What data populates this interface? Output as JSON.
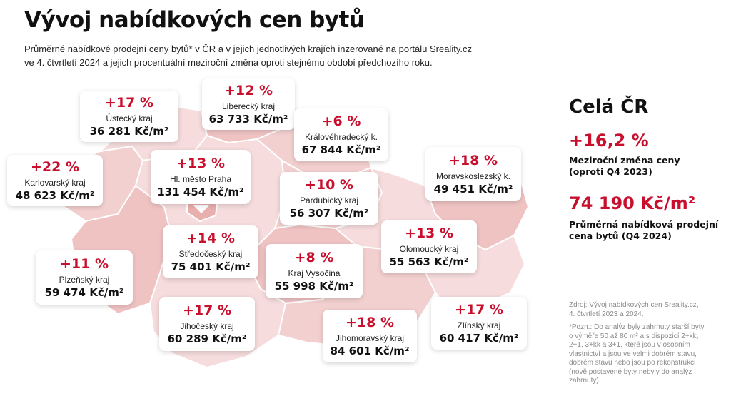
{
  "title": "Vývoj nabídkových cen bytů",
  "subtitle_line1": "Průměrné nabídkové prodejní ceny bytů* v ČR a v jejich jednotlivých krajích inzerované na portálu Sreality.cz",
  "subtitle_line2": "ve 4. čtvrtletí 2024 a jejich procentuální meziroční změna oproti stejnému období předchozího roku.",
  "colors": {
    "accent": "#c8102e",
    "map_light": "#f6dcdc",
    "map_mid": "#f0c3c3",
    "map_dark": "#e9aeae"
  },
  "regions": [
    {
      "id": "ustecky",
      "change": "+17 %",
      "name": "Ústecký kraj",
      "price": "36 281 Kč/m²"
    },
    {
      "id": "liberecky",
      "change": "+12 %",
      "name": "Liberecký kraj",
      "price": "63 733 Kč/m²"
    },
    {
      "id": "kralovehradecky",
      "change": "+6 %",
      "name": "Královéhradecký k.",
      "price": "67 844 Kč/m²"
    },
    {
      "id": "karlovarsky",
      "change": "+22 %",
      "name": "Karlovarský kraj",
      "price": "48 623 Kč/m²"
    },
    {
      "id": "praha",
      "change": "+13 %",
      "name": "Hl. město Praha",
      "price": "131 454 Kč/m²"
    },
    {
      "id": "pardubicky",
      "change": "+10 %",
      "name": "Pardubický kraj",
      "price": "56 307 Kč/m²"
    },
    {
      "id": "moravskoslezsky",
      "change": "+18 %",
      "name": "Moravskoslezský k.",
      "price": "49 451 Kč/m²"
    },
    {
      "id": "stredocesky",
      "change": "+14 %",
      "name": "Středočeský kraj",
      "price": "75 401 Kč/m²"
    },
    {
      "id": "olomoucky",
      "change": "+13 %",
      "name": "Olomoucký kraj",
      "price": "55 563 Kč/m²"
    },
    {
      "id": "plzensky",
      "change": "+11 %",
      "name": "Plzeňský kraj",
      "price": "59 474 Kč/m²"
    },
    {
      "id": "vysocina",
      "change": "+8 %",
      "name": "Kraj Vysočina",
      "price": "55 998 Kč/m²"
    },
    {
      "id": "jihocesky",
      "change": "+17 %",
      "name": "Jihočeský kraj",
      "price": "60 289 Kč/m²"
    },
    {
      "id": "jihomoravsky",
      "change": "+18 %",
      "name": "Jihomoravský kraj",
      "price": "84 601 Kč/m²"
    },
    {
      "id": "zlinsky",
      "change": "+17 %",
      "name": "Zlínský kraj",
      "price": "60 417 Kč/m²"
    }
  ],
  "summary": {
    "title": "Celá ČR",
    "change": "+16,2 %",
    "change_label_1": "Meziroční změna ceny",
    "change_label_2": "(oproti Q4 2023)",
    "price": "74 190 Kč/m²",
    "price_label_1": "Průměrná nabídková prodejní",
    "price_label_2": "cena bytů (Q4 2024)"
  },
  "source": {
    "line1": "Zdroj: Vývoj nabídkových cen Sreality.cz,",
    "line2": "4. čtvrtletí 2023 a 2024."
  },
  "footnote": {
    "line1": "*Pozn.: Do analýz byly zahrnuty starší byty",
    "line2": "o výměře 50 až 80 m² a s dispozicí 2+kk,",
    "line3": "2+1, 3+kk a 3+1, které jsou v osobním",
    "line4": "vlastnictví a jsou ve velmi dobrém stavu,",
    "line5": "dobrém stavu nebo jsou po rekonstrukci",
    "line6": "(nově postavené byty nebyly do analýz",
    "line7": "zahrnuty)."
  }
}
